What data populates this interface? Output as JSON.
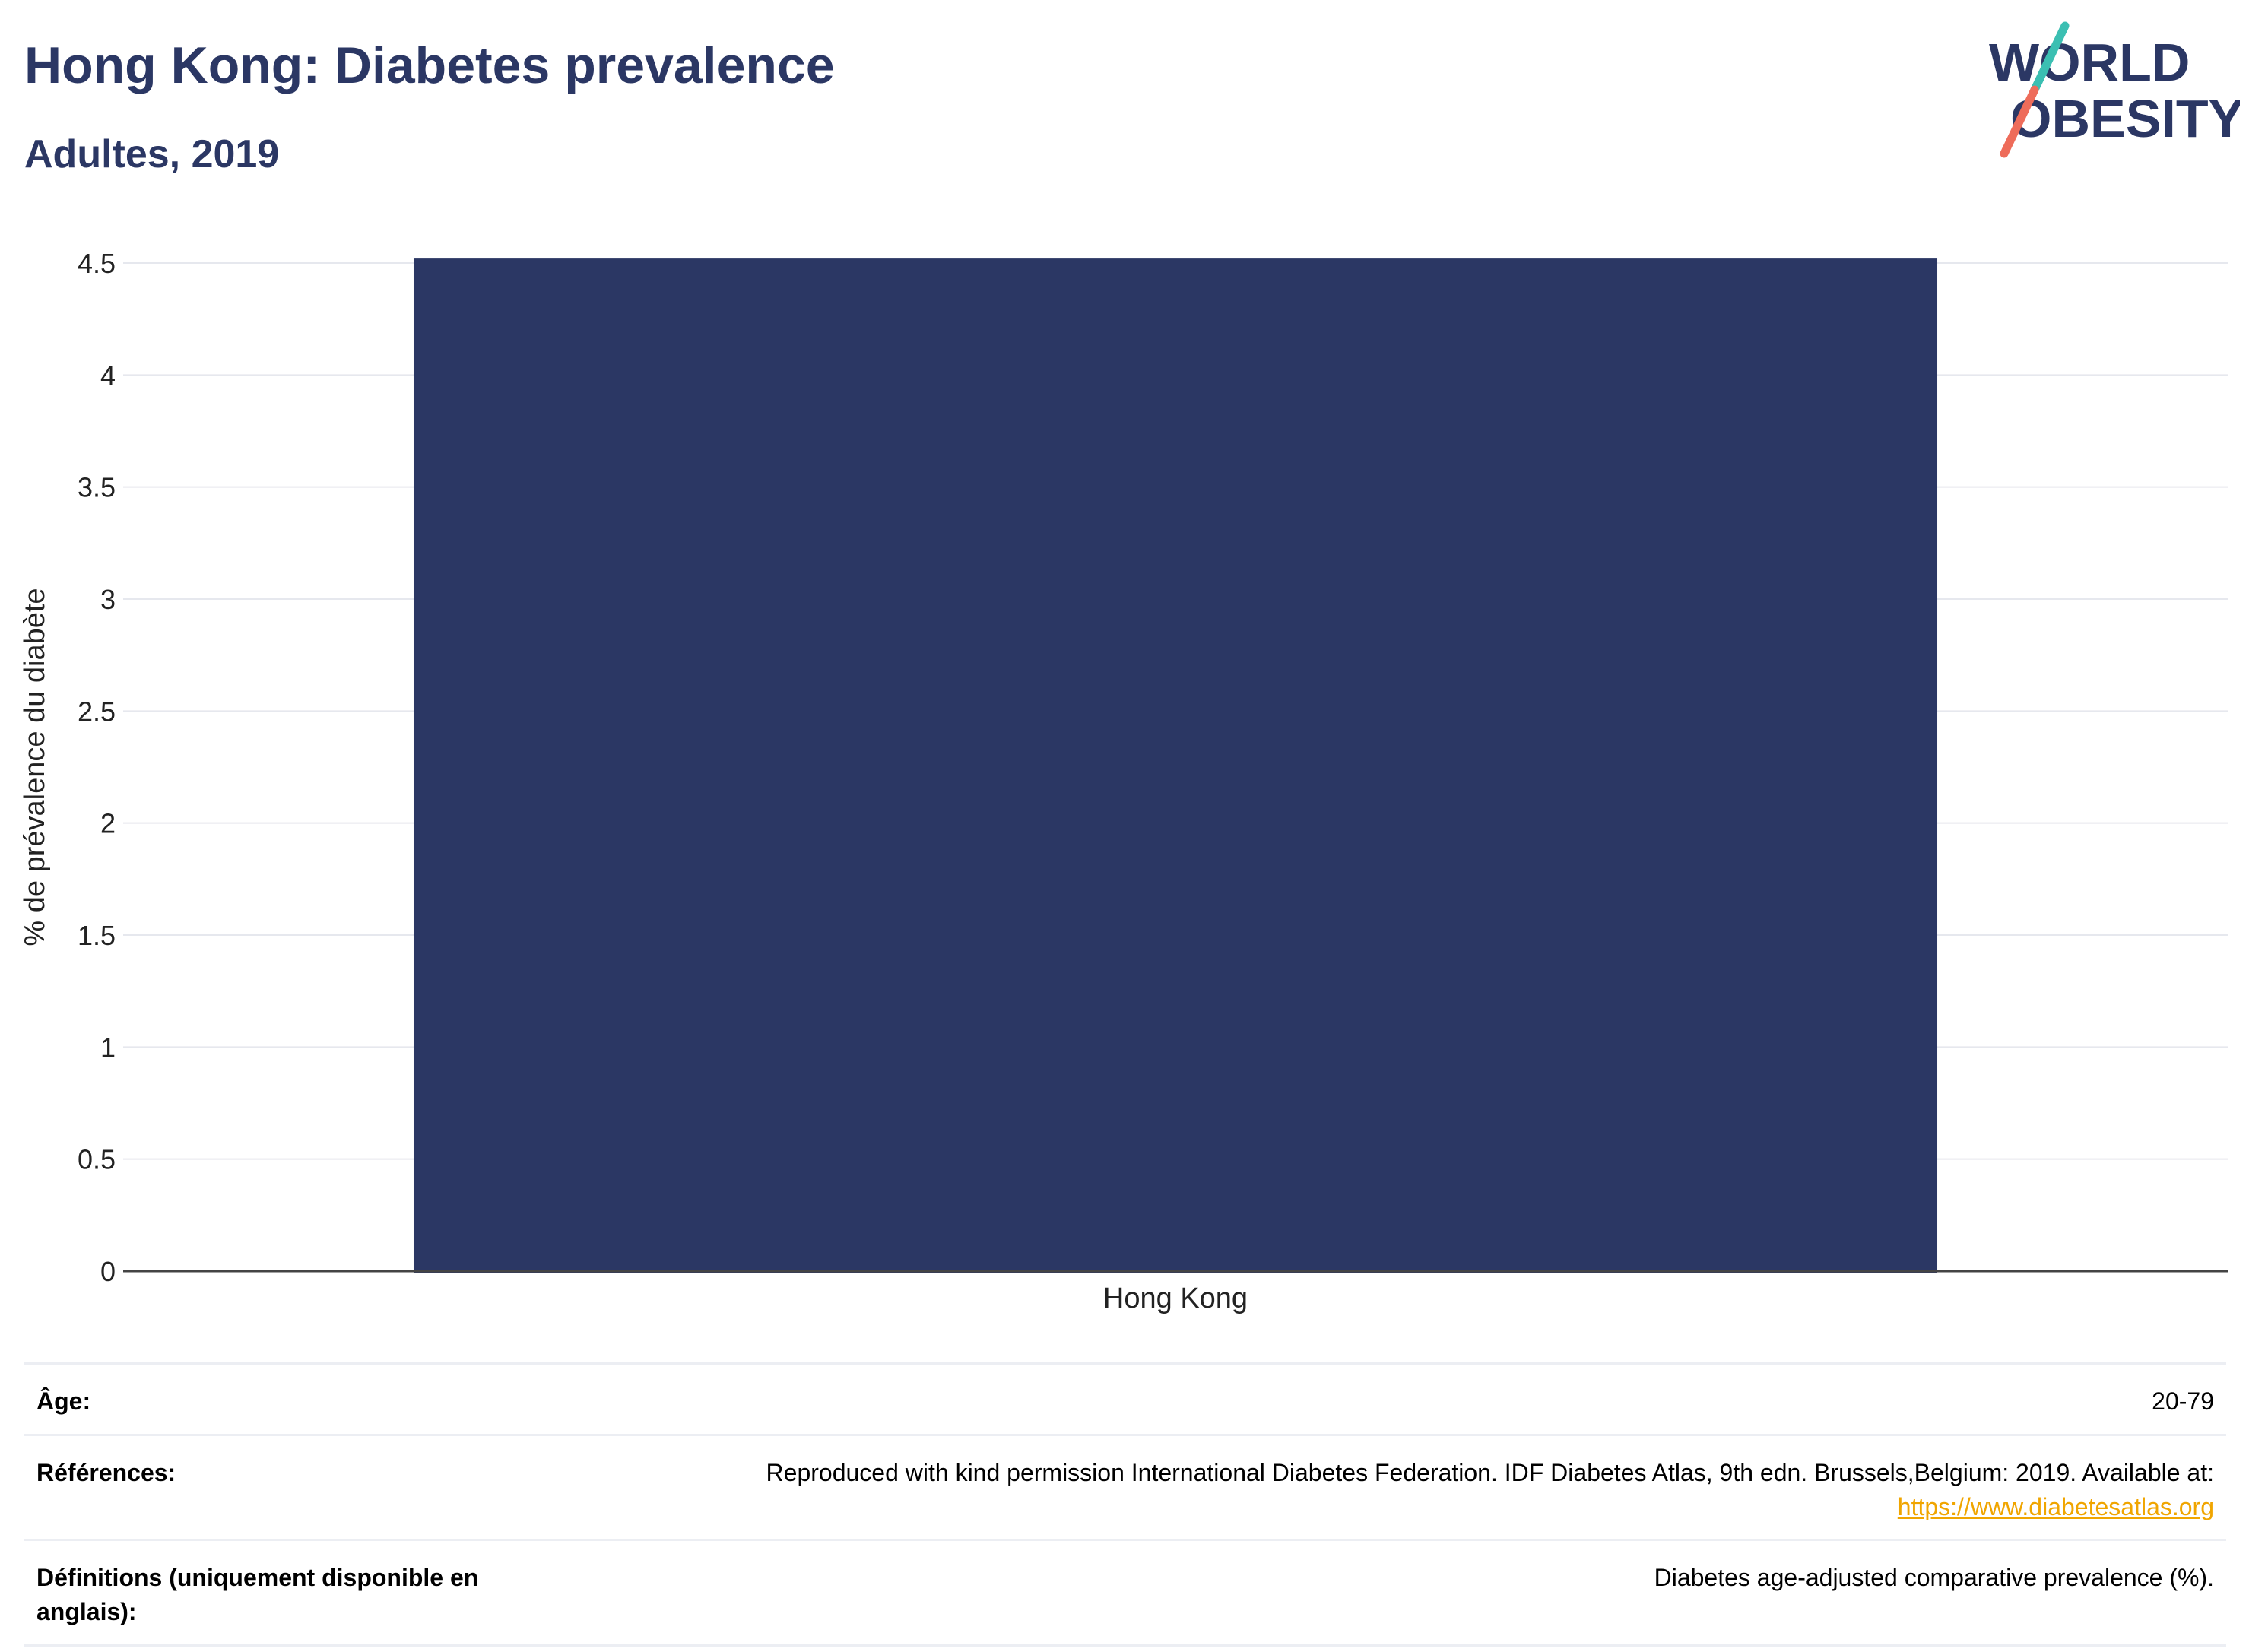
{
  "header": {
    "title": "Hong Kong: Diabetes prevalence",
    "subtitle": "Adultes, 2019"
  },
  "logo": {
    "line1": "WORLD",
    "line2": "OBESITY",
    "text_color": "#2b3764",
    "slash_teal": "#3bbfb2",
    "slash_coral": "#ee6c5a"
  },
  "chart_data": {
    "type": "bar",
    "categories": [
      "Hong Kong"
    ],
    "values": [
      4.52
    ],
    "ylabel": "% de prévalence du diabète",
    "xlabel": "",
    "ylim": [
      0,
      4.5
    ],
    "yticks": [
      "0",
      "0.5",
      "1",
      "1.5",
      "2",
      "2.5",
      "3",
      "3.5",
      "4",
      "4.5"
    ],
    "bar_color": "#2b3764",
    "grid": true
  },
  "meta": {
    "age_label": "Âge:",
    "age_value": "20-79",
    "refs_label": "Références:",
    "refs_text": "Reproduced with kind permission International Diabetes Federation. IDF Diabetes Atlas, 9th edn. Brussels,Belgium: 2019. Available at:",
    "refs_link": "https://www.diabetesatlas.org",
    "defs_label": "Définitions (uniquement disponible en anglais):",
    "defs_value": "Diabetes age-adjusted comparative prevalence (%)."
  }
}
